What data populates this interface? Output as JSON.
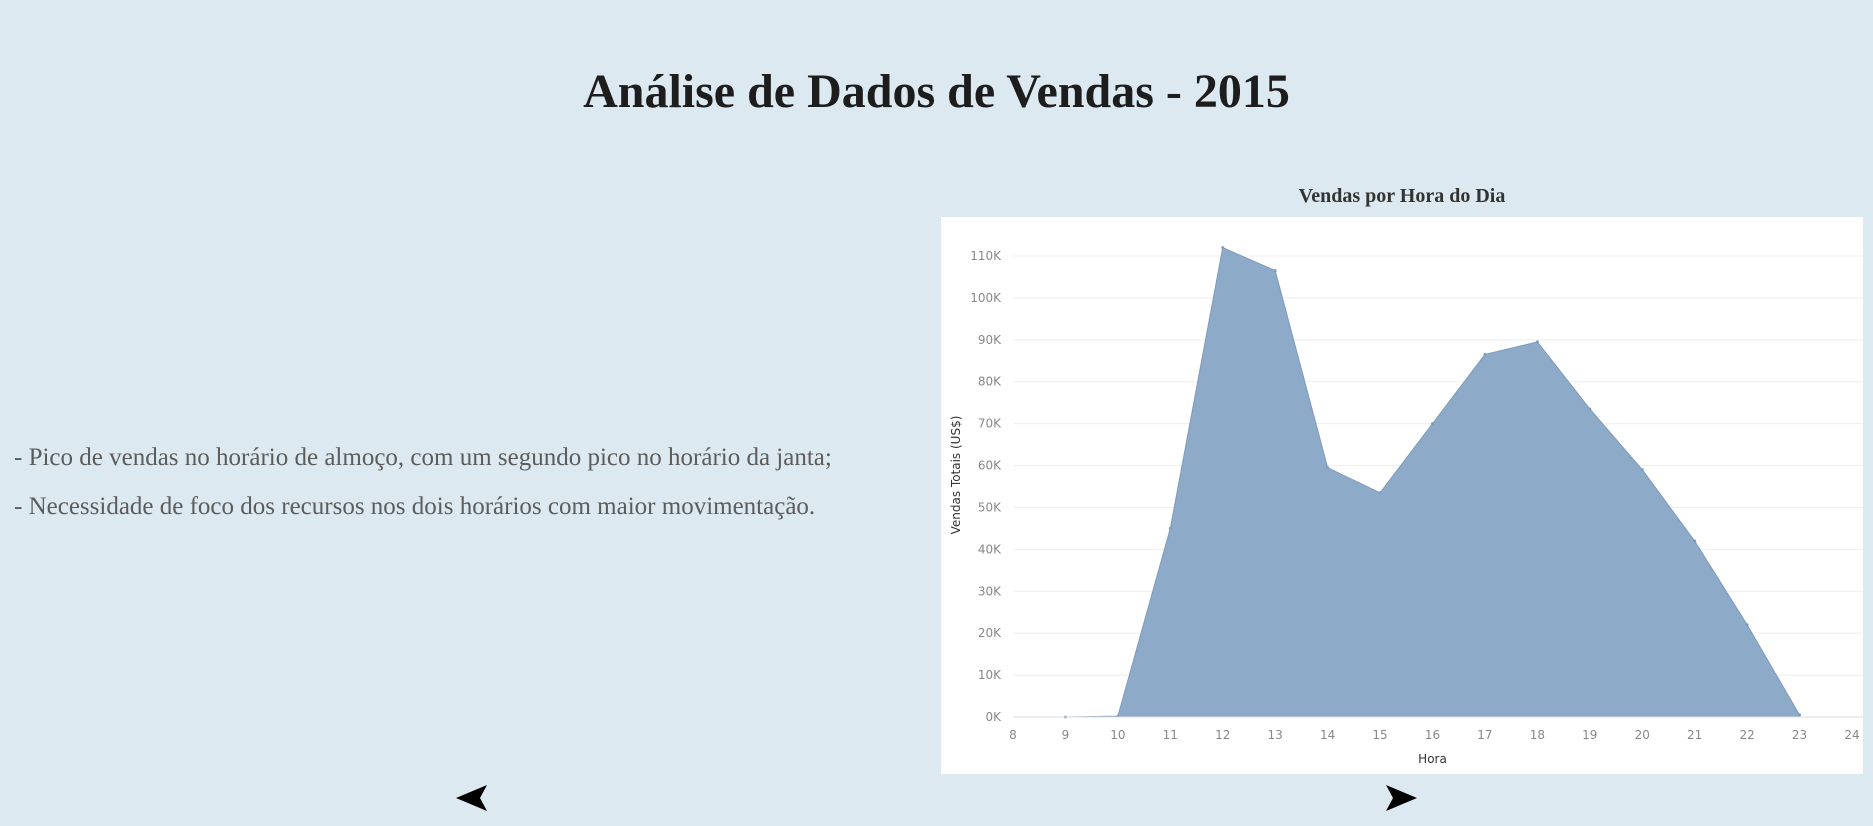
{
  "page": {
    "title": "Análise de Dados de Vendas - 2015",
    "notes": [
      "- Pico de vendas no horário de almoço, com um segundo pico no horário da janta;",
      "- Necessidade de foco dos recursos nos dois horários com maior movimentação."
    ]
  },
  "navigation": {
    "prev_icon": "triangle-left-icon",
    "next_icon": "triangle-right-icon"
  },
  "colors": {
    "background": "#dde9f0",
    "area_fill": "#8eaac9",
    "area_stroke": "#7d9bbd"
  },
  "chart_data": {
    "type": "area",
    "title": "Vendas por Hora do Dia",
    "xlabel": "Hora",
    "ylabel": "Vendas Totais (US$)",
    "x": [
      9,
      10,
      11,
      12,
      13,
      14,
      15,
      16,
      17,
      18,
      19,
      20,
      21,
      22,
      23
    ],
    "values": [
      0,
      200,
      45000,
      112000,
      106500,
      59500,
      53500,
      70000,
      86500,
      89500,
      73500,
      59000,
      42000,
      22000,
      500
    ],
    "xlim": [
      8,
      24
    ],
    "ylim": [
      0,
      110000
    ],
    "x_ticks": [
      "8",
      "9",
      "10",
      "11",
      "12",
      "13",
      "14",
      "15",
      "16",
      "17",
      "18",
      "19",
      "20",
      "21",
      "22",
      "23",
      "24"
    ],
    "y_ticks": [
      "0K",
      "10K",
      "20K",
      "30K",
      "40K",
      "50K",
      "60K",
      "70K",
      "80K",
      "90K",
      "100K",
      "110K"
    ],
    "grid": true,
    "legend": "none"
  }
}
